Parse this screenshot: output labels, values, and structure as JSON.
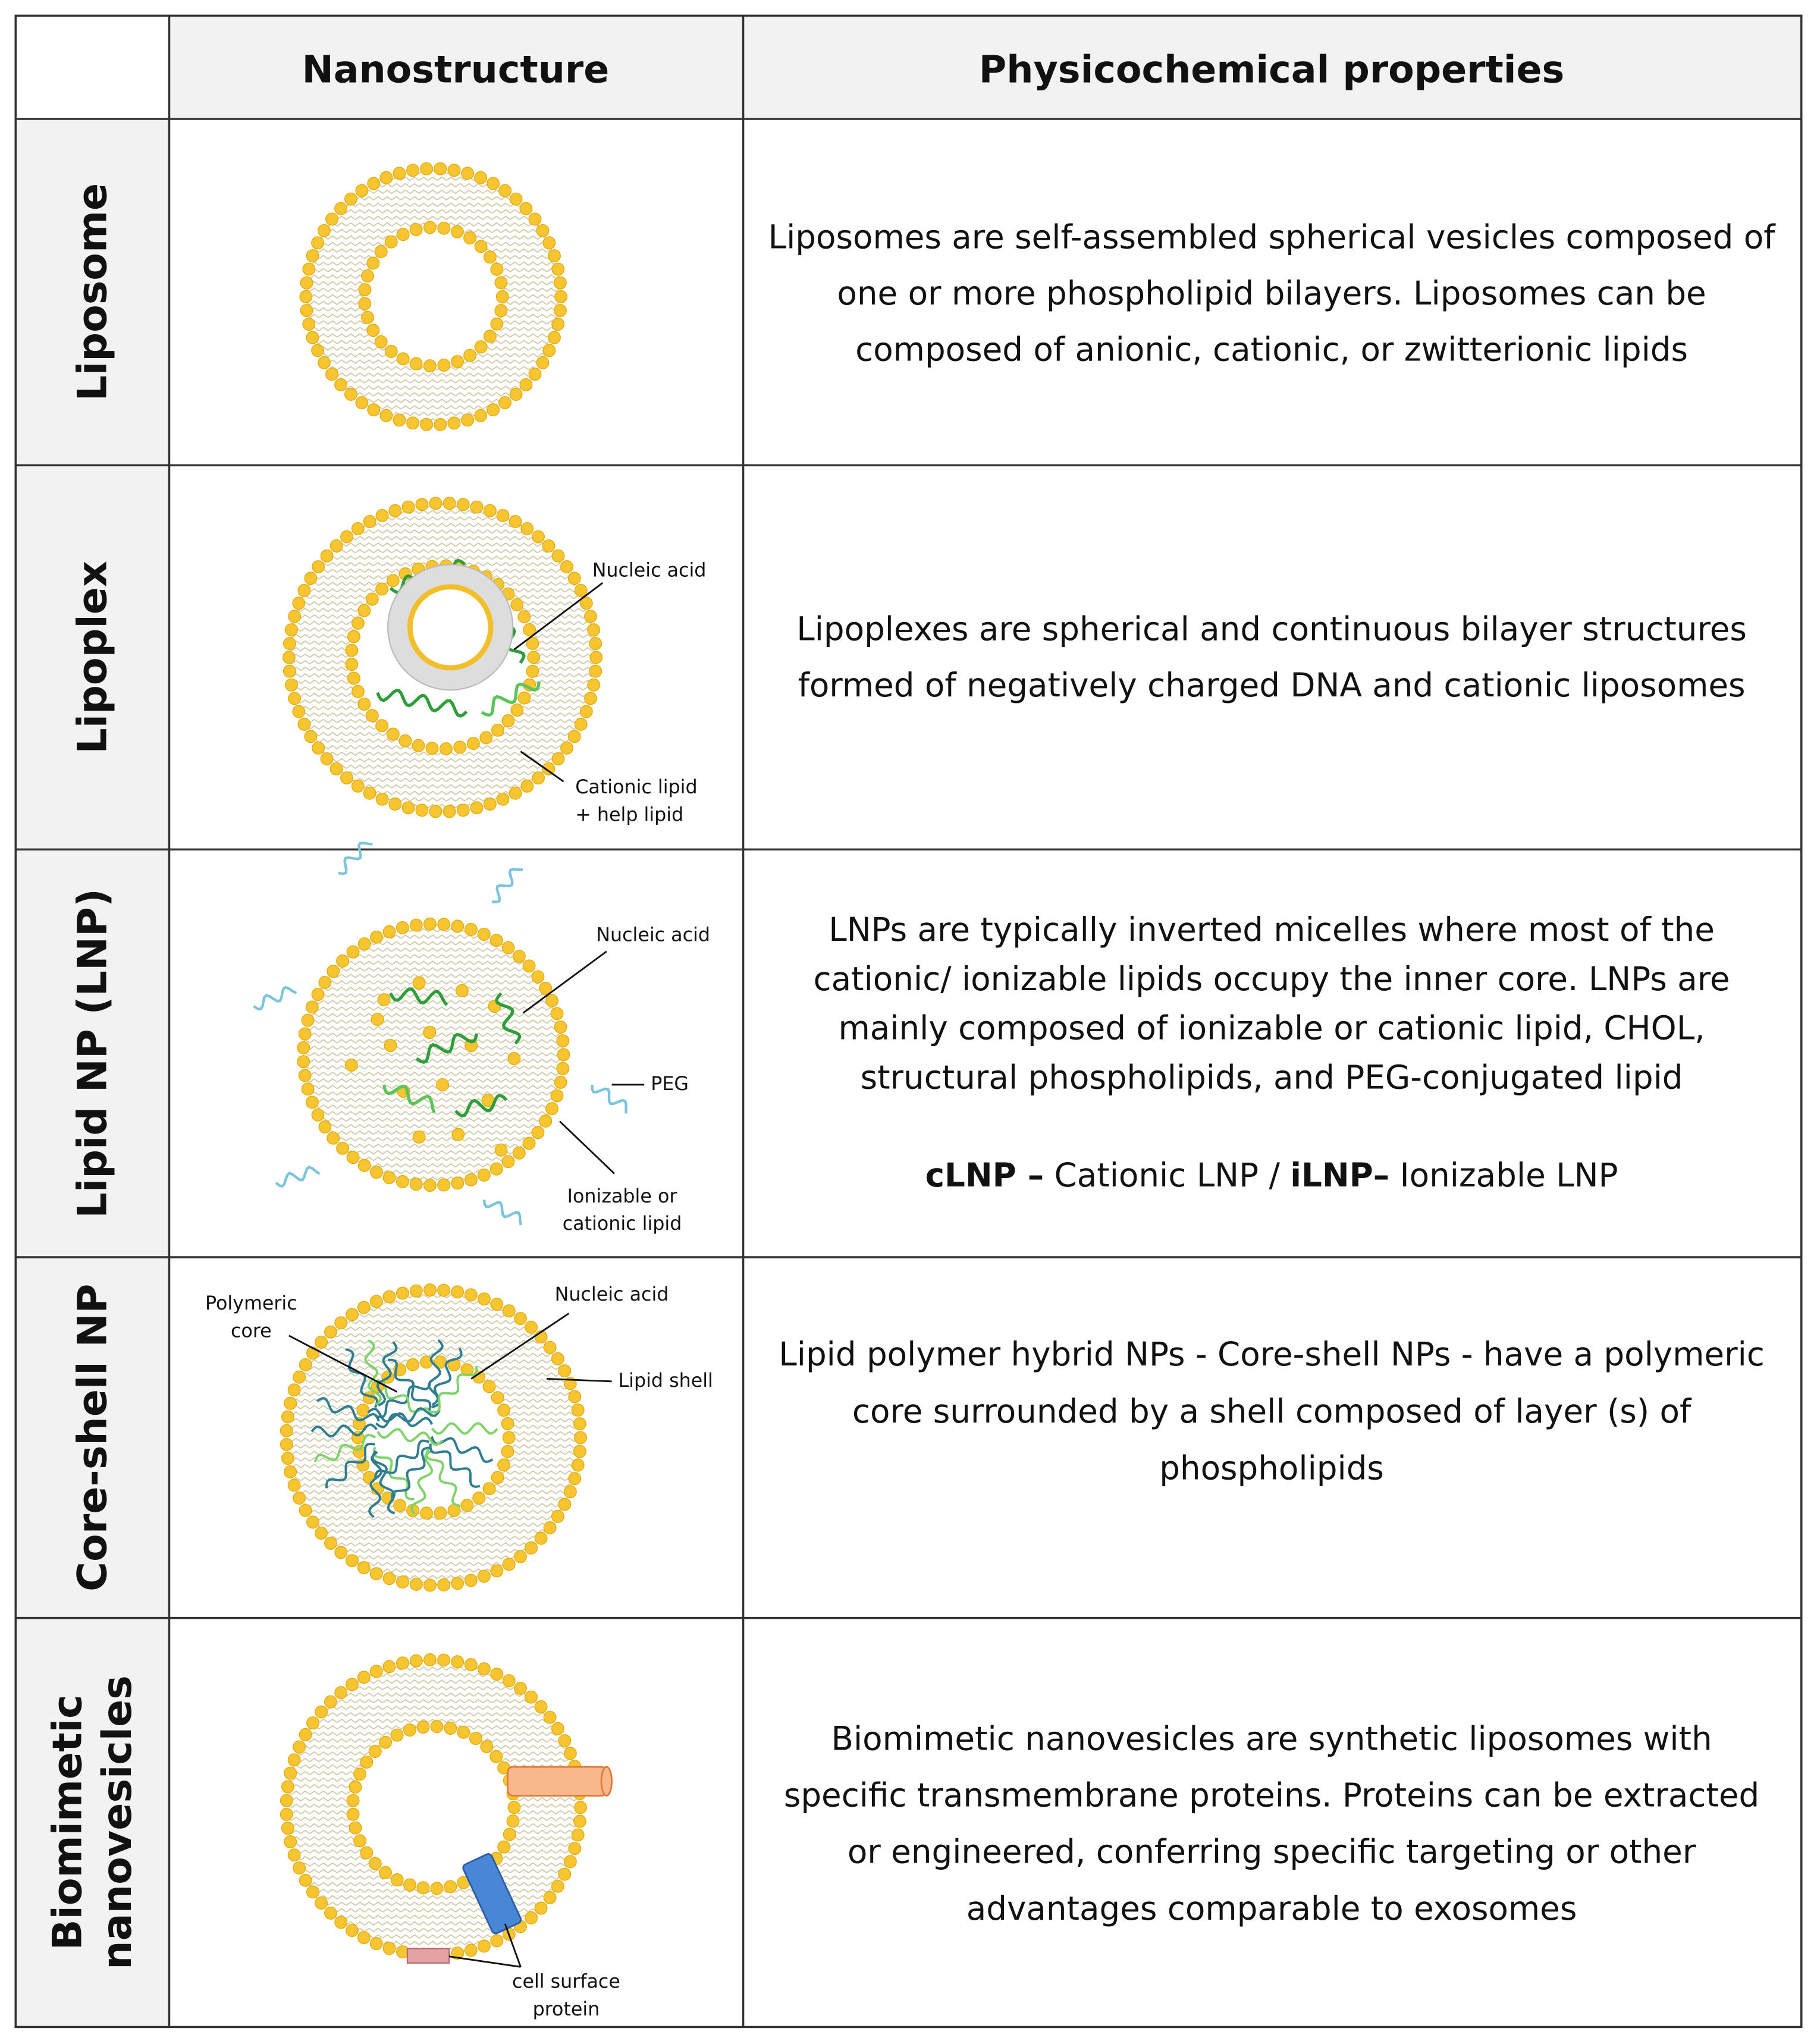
{
  "table": {
    "header": [
      "Nanostructure",
      "Physicochemical properties"
    ],
    "rows": [
      {
        "label_lines": [
          "Liposome"
        ],
        "callouts": [],
        "description": [
          "Liposomes are self-assembled spherical vesicles composed of",
          "one or more phospholipid bilayers. Liposomes can be",
          "composed of anionic, cationic, or zwitterionic lipids"
        ]
      },
      {
        "label_lines": [
          "Lipoplex"
        ],
        "callouts": [
          {
            "lines": [
              "Nucleic acid"
            ]
          },
          {
            "lines": [
              "Cationic lipid",
              "+ help lipid"
            ]
          }
        ],
        "description": [
          "Lipoplexes are spherical and continuous bilayer structures",
          "formed of negatively charged DNA and cationic liposomes"
        ]
      },
      {
        "label_lines": [
          "Lipid NP (LNP)"
        ],
        "callouts": [
          {
            "lines": [
              "Nucleic acid"
            ]
          },
          {
            "lines": [
              "PEG"
            ]
          },
          {
            "lines": [
              "Ionizable or",
              "cationic lipid"
            ]
          }
        ],
        "description": [
          "LNPs are typically inverted micelles where most of the",
          "cationic/ ionizable lipids occupy the inner core. LNPs are",
          "mainly composed of ionizable or cationic lipid, CHOL,",
          "structural phospholipids, and PEG-conjugated lipid"
        ],
        "note": [
          {
            "text": "cLNP –",
            "bold": true
          },
          {
            "text": " Cationic LNP / ",
            "bold": false
          },
          {
            "text": "iLNP–",
            "bold": true
          },
          {
            "text": " Ionizable LNP",
            "bold": false
          }
        ]
      },
      {
        "label_lines": [
          "Core-shell NP"
        ],
        "callouts": [
          {
            "lines": [
              "Polymeric",
              "core"
            ]
          },
          {
            "lines": [
              "Nucleic acid"
            ]
          },
          {
            "lines": [
              "Lipid shell"
            ]
          }
        ],
        "description": [
          "Lipid polymer hybrid NPs - Core-shell NPs - have a polymeric",
          "core surrounded by a shell composed of layer (s) of",
          "phospholipids"
        ]
      },
      {
        "label_lines": [
          "Biomimetic",
          "nanovesicles"
        ],
        "callouts": [
          {
            "lines": [
              "cell surface",
              "protein"
            ]
          }
        ],
        "description": [
          "Biomimetic nanovesicles are synthetic liposomes with",
          "specific transmembrane proteins. Proteins can be extracted",
          "or engineered, conferring specific targeting or other",
          "advantages comparable to exosomes"
        ]
      }
    ]
  }
}
